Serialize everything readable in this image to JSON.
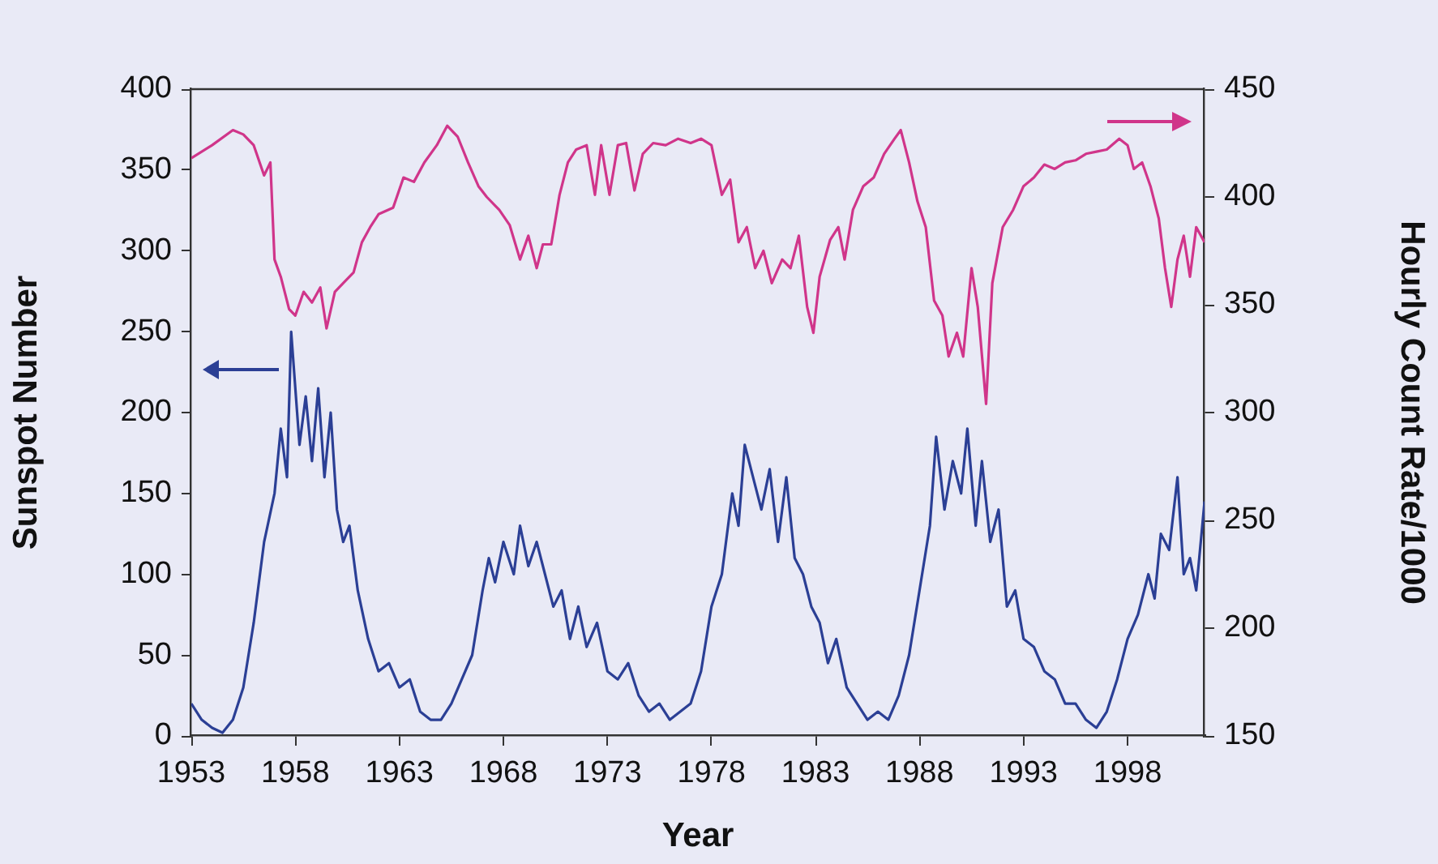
{
  "chart_data": {
    "type": "line",
    "xlabel": "Year",
    "ylabel": "Sunspot Number",
    "y2label": "Hourly Count Rate/1000",
    "xlim": [
      1953,
      2001.7
    ],
    "xticks": [
      1953,
      1958,
      1963,
      1968,
      1973,
      1978,
      1983,
      1988,
      1993,
      1998
    ],
    "ylim": [
      0,
      400
    ],
    "yticks": [
      0,
      50,
      100,
      150,
      200,
      250,
      300,
      350,
      400
    ],
    "y2lim": [
      150,
      450
    ],
    "y2ticks": [
      150,
      200,
      250,
      300,
      350,
      400,
      450
    ],
    "grid": false,
    "legend": false,
    "marker": "none",
    "line_style": "solid",
    "series": [
      {
        "color": "#2b3f95",
        "x": [
          1953,
          1953.5,
          1954,
          1954.5,
          1955,
          1955.5,
          1956,
          1956.5,
          1957,
          1957.3,
          1957.6,
          1957.8,
          1958.2,
          1958.5,
          1958.8,
          1959.1,
          1959.4,
          1959.7,
          1960,
          1960.3,
          1960.6,
          1961,
          1961.5,
          1962,
          1962.5,
          1963,
          1963.5,
          1964,
          1964.5,
          1965,
          1965.5,
          1966,
          1966.5,
          1967,
          1967.3,
          1967.6,
          1968,
          1968.5,
          1968.8,
          1969.2,
          1969.6,
          1970,
          1970.4,
          1970.8,
          1971.2,
          1971.6,
          1972,
          1972.5,
          1973,
          1973.5,
          1974,
          1974.5,
          1975,
          1975.5,
          1976,
          1976.5,
          1977,
          1977.5,
          1978,
          1978.5,
          1979,
          1979.3,
          1979.6,
          1980,
          1980.4,
          1980.8,
          1981.2,
          1981.6,
          1982,
          1982.4,
          1982.8,
          1983.2,
          1983.6,
          1984,
          1984.5,
          1985,
          1985.5,
          1986,
          1986.5,
          1987,
          1987.5,
          1988,
          1988.5,
          1988.8,
          1989.2,
          1989.6,
          1990,
          1990.3,
          1990.7,
          1991,
          1991.4,
          1991.8,
          1992.2,
          1992.6,
          1993,
          1993.5,
          1994,
          1994.5,
          1995,
          1995.5,
          1996,
          1996.5,
          1997,
          1997.5,
          1998,
          1998.5,
          1999,
          1999.3,
          1999.6,
          2000,
          2000.4,
          2000.7,
          2001,
          2001.3,
          2001.7
        ],
        "values": [
          20,
          10,
          5,
          2,
          10,
          30,
          70,
          120,
          150,
          190,
          160,
          250,
          180,
          210,
          170,
          215,
          160,
          200,
          140,
          120,
          130,
          90,
          60,
          40,
          45,
          30,
          35,
          15,
          10,
          10,
          20,
          35,
          50,
          90,
          110,
          95,
          120,
          100,
          130,
          105,
          120,
          100,
          80,
          90,
          60,
          80,
          55,
          70,
          40,
          35,
          45,
          25,
          15,
          20,
          10,
          15,
          20,
          40,
          80,
          100,
          150,
          130,
          180,
          160,
          140,
          165,
          120,
          160,
          110,
          100,
          80,
          70,
          45,
          60,
          30,
          20,
          10,
          15,
          10,
          25,
          50,
          90,
          130,
          185,
          140,
          170,
          150,
          190,
          130,
          170,
          120,
          140,
          80,
          90,
          60,
          55,
          40,
          35,
          20,
          20,
          10,
          5,
          15,
          35,
          60,
          75,
          100,
          85,
          125,
          115,
          160,
          100,
          110,
          90,
          145
        ]
      },
      {
        "color": "#d0358a",
        "axis": "y2",
        "x": [
          1953,
          1954,
          1955,
          1955.5,
          1956,
          1956.5,
          1956.8,
          1957,
          1957.3,
          1957.7,
          1958,
          1958.4,
          1958.8,
          1959.2,
          1959.5,
          1959.9,
          1960.3,
          1960.8,
          1961.2,
          1961.6,
          1962,
          1962.7,
          1963.2,
          1963.7,
          1964.2,
          1964.8,
          1965.3,
          1965.8,
          1966.3,
          1966.8,
          1967.2,
          1967.8,
          1968.3,
          1968.8,
          1969.2,
          1969.6,
          1969.9,
          1970.3,
          1970.7,
          1971.1,
          1971.5,
          1972,
          1972.4,
          1972.7,
          1973.1,
          1973.5,
          1973.9,
          1974.3,
          1974.7,
          1975.2,
          1975.8,
          1976.4,
          1977,
          1977.5,
          1978,
          1978.5,
          1978.9,
          1979.3,
          1979.7,
          1980.1,
          1980.5,
          1980.9,
          1981.4,
          1981.8,
          1982.2,
          1982.6,
          1982.9,
          1983.2,
          1983.7,
          1984.1,
          1984.4,
          1984.8,
          1985.3,
          1985.8,
          1986.3,
          1986.8,
          1987.1,
          1987.5,
          1987.9,
          1988.3,
          1988.7,
          1989.1,
          1989.4,
          1989.8,
          1990.1,
          1990.5,
          1990.8,
          1991.2,
          1991.5,
          1992,
          1992.5,
          1993,
          1993.5,
          1994,
          1994.5,
          1995,
          1995.5,
          1996,
          1996.5,
          1997,
          1997.6,
          1998,
          1998.3,
          1998.7,
          1999.1,
          1999.5,
          1999.8,
          2000.1,
          2000.4,
          2000.7,
          2001,
          2001.3,
          2001.7
        ],
        "values": [
          418,
          424,
          431,
          429,
          424,
          410,
          416,
          371,
          363,
          348,
          345,
          356,
          351,
          358,
          339,
          356,
          360,
          365,
          379,
          386,
          392,
          395,
          409,
          407,
          416,
          424,
          433,
          428,
          416,
          405,
          400,
          394,
          387,
          371,
          382,
          367,
          378,
          378,
          401,
          416,
          422,
          424,
          401,
          424,
          401,
          424,
          425,
          403,
          420,
          425,
          424,
          427,
          425,
          427,
          424,
          401,
          408,
          379,
          386,
          367,
          375,
          360,
          371,
          367,
          382,
          349,
          337,
          363,
          380,
          386,
          371,
          394,
          405,
          409,
          420,
          427,
          431,
          416,
          398,
          386,
          352,
          345,
          326,
          337,
          326,
          367,
          349,
          304,
          360,
          386,
          394,
          405,
          409,
          415,
          413,
          416,
          417,
          420,
          421,
          422,
          427,
          424,
          413,
          416,
          405,
          390,
          367,
          349,
          371,
          382,
          363,
          386,
          379
        ]
      }
    ]
  }
}
